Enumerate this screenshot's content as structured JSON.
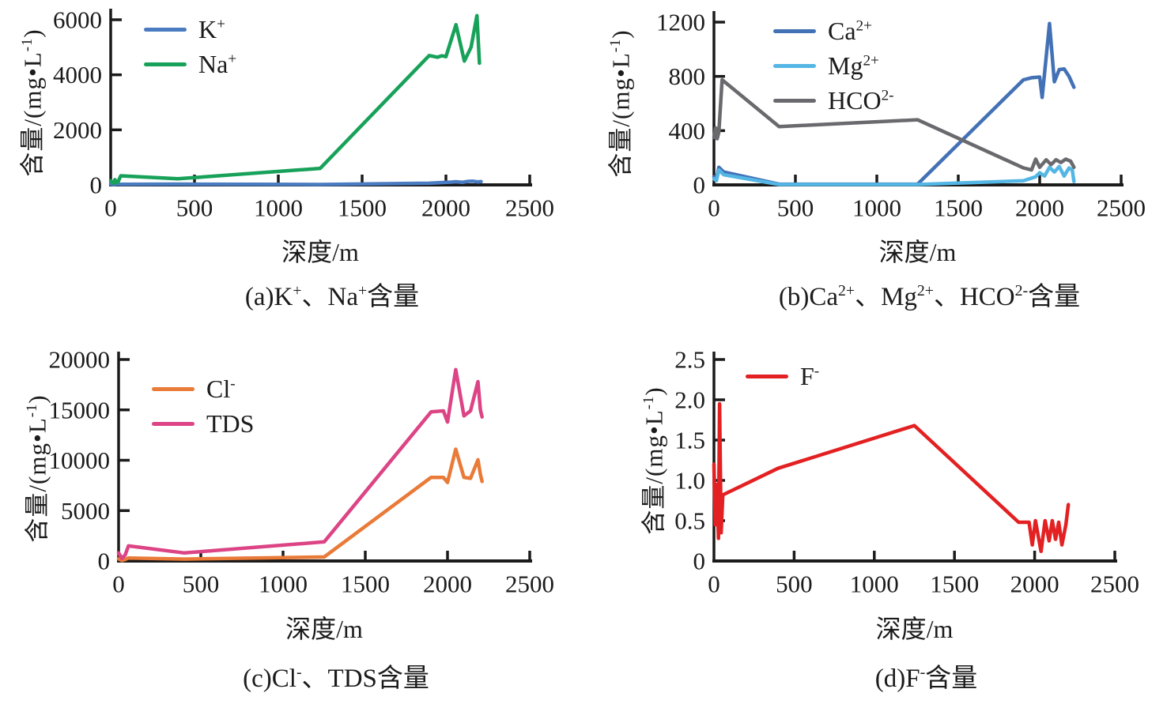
{
  "figure": {
    "background": "#ffffff",
    "text_color": "#1b1b1b",
    "axis_color": "#1b1b1b",
    "xlabel": "深度/m",
    "ylabel_plain": "含量/(mg•L-1)",
    "ylabel_segments": [
      {
        "t": "含量/(mg•L",
        "sup": false
      },
      {
        "t": "-1",
        "sup": true
      },
      {
        "t": ")",
        "sup": false
      }
    ]
  },
  "chart_data": [
    {
      "id": "a",
      "type": "line",
      "caption_plain": "(a)K+、Na+含量",
      "caption_segments": [
        {
          "t": "(a)K",
          "sup": false
        },
        {
          "t": "+",
          "sup": true
        },
        {
          "t": "、Na",
          "sup": false
        },
        {
          "t": "+",
          "sup": true
        },
        {
          "t": "含量",
          "sup": false
        }
      ],
      "xlabel": "深度/m",
      "ylabel": "含量/(mg•L-1)",
      "xlim": [
        0,
        2500
      ],
      "ylim": [
        0,
        6000
      ],
      "xticks": [
        0,
        500,
        1000,
        1500,
        2000,
        2500
      ],
      "xtick_labels": [
        "0",
        "500",
        "1000",
        "1500",
        "2000",
        "2500"
      ],
      "yticks": [
        0,
        2000,
        4000,
        6000
      ],
      "ytick_labels": [
        "0",
        "2000",
        "4000",
        "6000"
      ],
      "grid": false,
      "legend_position": "upper-left",
      "series": [
        {
          "name": "K+",
          "label_segments": [
            {
              "t": "K",
              "sup": false
            },
            {
              "t": "+",
              "sup": true
            }
          ],
          "color": "#4a7cc1",
          "x": [
            0,
            20,
            40,
            60,
            400,
            1250,
            1900,
            1980,
            2030,
            2060,
            2100,
            2130,
            2160,
            2190,
            2210
          ],
          "y": [
            25,
            10,
            30,
            20,
            30,
            15,
            60,
            85,
            100,
            115,
            95,
            125,
            135,
            110,
            120
          ]
        },
        {
          "name": "Na+",
          "label_segments": [
            {
              "t": "Na",
              "sup": false
            },
            {
              "t": "+",
              "sup": true
            }
          ],
          "color": "#17a159",
          "x": [
            0,
            15,
            25,
            35,
            45,
            60,
            400,
            1250,
            1900,
            1950,
            1975,
            2000,
            2060,
            2110,
            2150,
            2185,
            2200
          ],
          "y": [
            150,
            60,
            190,
            80,
            120,
            330,
            220,
            600,
            4700,
            4640,
            4690,
            4660,
            5820,
            4500,
            5000,
            6150,
            4420
          ]
        }
      ]
    },
    {
      "id": "b",
      "type": "line",
      "caption_plain": "(b)Ca2+、Mg2+、HCO2-含量",
      "caption_segments": [
        {
          "t": "(b)Ca",
          "sup": false
        },
        {
          "t": "2+",
          "sup": true
        },
        {
          "t": "、Mg",
          "sup": false
        },
        {
          "t": "2+",
          "sup": true
        },
        {
          "t": "、HCO",
          "sup": false
        },
        {
          "t": "2-",
          "sup": true
        },
        {
          "t": "含量",
          "sup": false
        }
      ],
      "xlabel": "深度/m",
      "ylabel": "含量/(mg•L-1)",
      "xlim": [
        0,
        2500
      ],
      "ylim": [
        0,
        1200
      ],
      "xticks": [
        0,
        500,
        1000,
        1500,
        2000,
        2500
      ],
      "xtick_labels": [
        "0",
        "500",
        "1000",
        "1500",
        "2000",
        "2500"
      ],
      "yticks": [
        0,
        400,
        800,
        1200
      ],
      "ytick_labels": [
        "0",
        "400",
        "800",
        "1200"
      ],
      "grid": false,
      "legend_position": "upper-left",
      "series": [
        {
          "name": "Ca2+",
          "label_segments": [
            {
              "t": "Ca",
              "sup": false
            },
            {
              "t": "2+",
              "sup": true
            }
          ],
          "color": "#4371b5",
          "x": [
            0,
            15,
            30,
            60,
            400,
            1250,
            1900,
            1950,
            2000,
            2015,
            2060,
            2090,
            2120,
            2150,
            2180,
            2210
          ],
          "y": [
            60,
            40,
            130,
            95,
            5,
            5,
            775,
            790,
            795,
            645,
            1190,
            760,
            850,
            855,
            800,
            720
          ]
        },
        {
          "name": "Mg2+",
          "label_segments": [
            {
              "t": "Mg",
              "sup": false
            },
            {
              "t": "2+",
              "sup": true
            }
          ],
          "color": "#54b6e4",
          "x": [
            0,
            15,
            30,
            60,
            400,
            1250,
            1900,
            1975,
            2000,
            2030,
            2060,
            2090,
            2120,
            2150,
            2180,
            2200,
            2210
          ],
          "y": [
            45,
            30,
            110,
            75,
            3,
            3,
            30,
            60,
            90,
            65,
            130,
            95,
            135,
            65,
            125,
            110,
            25
          ]
        },
        {
          "name": "HCO2-",
          "label_segments": [
            {
              "t": "HCO",
              "sup": false
            },
            {
              "t": "2-",
              "sup": true
            }
          ],
          "color": "#6a6a6e",
          "x": [
            0,
            10,
            20,
            30,
            50,
            400,
            1250,
            1900,
            1950,
            1975,
            2000,
            2040,
            2070,
            2100,
            2130,
            2160,
            2190,
            2210
          ],
          "y": [
            350,
            420,
            340,
            390,
            775,
            430,
            480,
            125,
            110,
            190,
            130,
            185,
            150,
            185,
            165,
            190,
            175,
            130
          ]
        }
      ]
    },
    {
      "id": "c",
      "type": "line",
      "caption_plain": "(c)Cl-、TDS含量",
      "caption_segments": [
        {
          "t": "(c)Cl",
          "sup": false
        },
        {
          "t": "-",
          "sup": true
        },
        {
          "t": "、TDS含量",
          "sup": false
        }
      ],
      "xlabel": "深度/m",
      "ylabel": "含量/(mg•L-1)",
      "xlim": [
        0,
        2500
      ],
      "ylim": [
        0,
        20000
      ],
      "xticks": [
        0,
        500,
        1000,
        1500,
        2000,
        2500
      ],
      "xtick_labels": [
        "0",
        "500",
        "1000",
        "1500",
        "2000",
        "2500"
      ],
      "yticks": [
        0,
        5000,
        10000,
        15000,
        20000
      ],
      "ytick_labels": [
        "0",
        "5000",
        "10000",
        "15000",
        "20000"
      ],
      "grid": false,
      "legend_position": "upper-left",
      "series": [
        {
          "name": "Cl-",
          "label_segments": [
            {
              "t": "Cl",
              "sup": false
            },
            {
              "t": "-",
              "sup": true
            }
          ],
          "color": "#e97a38",
          "x": [
            0,
            20,
            40,
            60,
            400,
            1250,
            1900,
            1975,
            2000,
            2050,
            2100,
            2140,
            2185,
            2200,
            2210
          ],
          "y": [
            200,
            50,
            150,
            300,
            190,
            400,
            8300,
            8300,
            7800,
            11100,
            8300,
            8200,
            10050,
            8600,
            7900
          ]
        },
        {
          "name": "TDS",
          "label_segments": [
            {
              "t": "TDS",
              "sup": false
            }
          ],
          "color": "#dc4485",
          "x": [
            0,
            20,
            40,
            60,
            400,
            1250,
            1900,
            1975,
            2000,
            2050,
            2100,
            2140,
            2185,
            2200,
            2210
          ],
          "y": [
            800,
            250,
            600,
            1500,
            800,
            1900,
            14800,
            14900,
            13800,
            19000,
            14400,
            14900,
            17800,
            15000,
            14300
          ]
        }
      ]
    },
    {
      "id": "d",
      "type": "line",
      "caption_plain": "(d)F-含量",
      "caption_segments": [
        {
          "t": "(d)F",
          "sup": false
        },
        {
          "t": "-",
          "sup": true
        },
        {
          "t": "含量",
          "sup": false
        }
      ],
      "xlabel": "深度/m",
      "ylabel": "含量/(mg•L-1)",
      "xlim": [
        0,
        2500
      ],
      "ylim": [
        0,
        2.5
      ],
      "xticks": [
        0,
        500,
        1000,
        1500,
        2000,
        2500
      ],
      "xtick_labels": [
        "0",
        "500",
        "1000",
        "1500",
        "2000",
        "2500"
      ],
      "yticks": [
        0,
        0.5,
        1.0,
        1.5,
        2.0,
        2.5
      ],
      "ytick_labels": [
        "0",
        "0.5",
        "1.0",
        "1.5",
        "2.0",
        "2.5"
      ],
      "grid": false,
      "legend_position": "upper-left",
      "series": [
        {
          "name": "F-",
          "label_segments": [
            {
              "t": "F",
              "sup": false
            },
            {
              "t": "-",
              "sup": true
            }
          ],
          "color": "#e32022",
          "x": [
            0,
            8,
            18,
            28,
            35,
            45,
            55,
            400,
            1250,
            1900,
            1965,
            1985,
            2005,
            2040,
            2065,
            2090,
            2110,
            2130,
            2150,
            2170,
            2195,
            2210
          ],
          "y": [
            1.2,
            0.45,
            0.95,
            0.28,
            1.95,
            0.35,
            0.82,
            1.15,
            1.68,
            0.48,
            0.48,
            0.2,
            0.5,
            0.12,
            0.5,
            0.25,
            0.5,
            0.27,
            0.48,
            0.2,
            0.45,
            0.7
          ]
        }
      ]
    }
  ]
}
